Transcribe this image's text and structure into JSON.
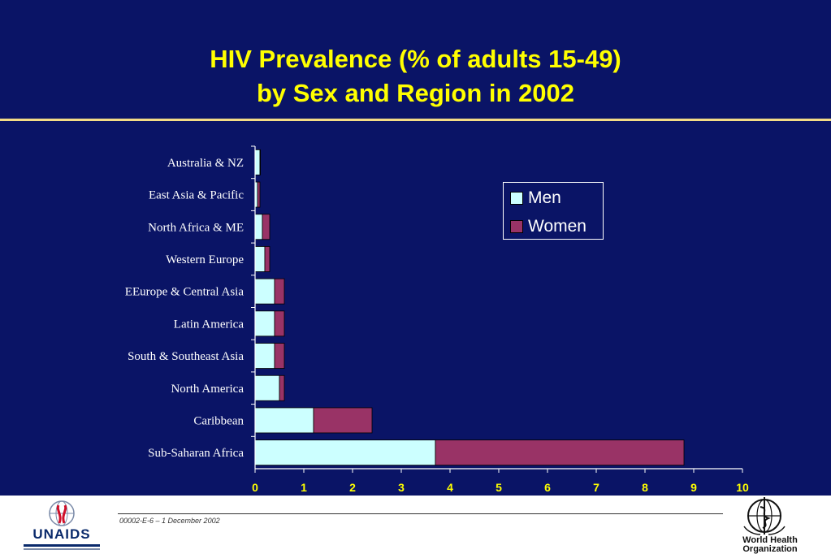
{
  "slide": {
    "title_line1": "HIV Prevalence (% of adults 15-49)",
    "title_line2": "by Sex and Region in 2002",
    "footer_ref": "00002-E-6 – 1 December 2002",
    "logo_left_text": "UNAIDS",
    "logo_right_text_line1": "World Health",
    "logo_right_text_line2": "Organization",
    "colors": {
      "background": "#0a1466",
      "title": "#ffff00",
      "rule": "#f3dc86"
    }
  },
  "chart_data": {
    "type": "bar",
    "orientation": "horizontal",
    "stacked": true,
    "categories": [
      "Australia & NZ",
      "East Asia & Pacific",
      "North Africa & ME",
      "Western Europe",
      "EEurope & Central Asia",
      "Latin America",
      "South & Southeast Asia",
      "North America",
      "Caribbean",
      "Sub-Saharan Africa"
    ],
    "series": [
      {
        "name": "Men",
        "color": "#ccffff",
        "values": [
          0.1,
          0.05,
          0.15,
          0.2,
          0.4,
          0.4,
          0.4,
          0.5,
          1.2,
          3.7
        ]
      },
      {
        "name": "Women",
        "color": "#993366",
        "values": [
          0.01,
          0.05,
          0.15,
          0.1,
          0.2,
          0.2,
          0.2,
          0.1,
          1.2,
          5.1
        ]
      }
    ],
    "xlim": [
      0,
      10
    ],
    "xticks": [
      "0",
      "1",
      "2",
      "3",
      "4",
      "5",
      "6",
      "7",
      "8",
      "9",
      "10"
    ],
    "legend_position": "top-right",
    "grid": false
  }
}
